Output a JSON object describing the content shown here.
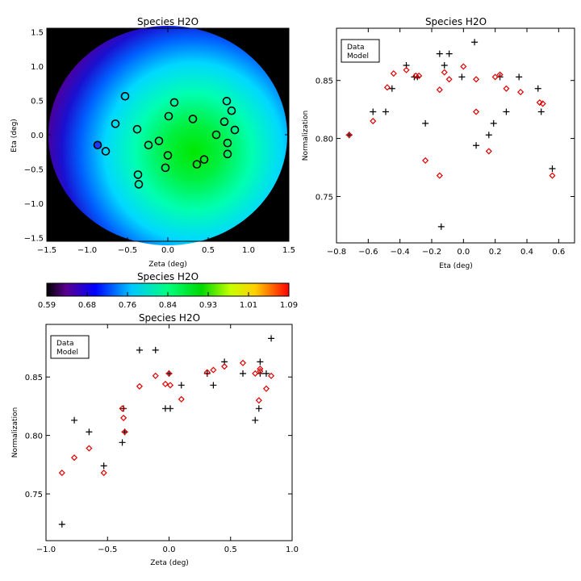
{
  "colors": {
    "data": "#000000",
    "model": "#e00000",
    "map_low": "#3a0060",
    "map_high": "#ff0000",
    "background_mask": "#000000"
  },
  "chart_data": [
    {
      "id": "map",
      "type": "heatmap",
      "title": "Species H2O",
      "xlabel": "Zeta (deg)",
      "ylabel": "Eta (deg)",
      "xlim": [
        -1.5,
        1.5
      ],
      "ylim": [
        -1.55,
        1.55
      ],
      "xticks": [
        "-1.5",
        "-1.0",
        "-0.5",
        "0.0",
        "0.5",
        "1.0",
        "1.5"
      ],
      "yticks": [
        "-1.5",
        "-1.0",
        "-0.5",
        "0.0",
        "0.5",
        "1.0",
        "1.5"
      ],
      "field_center": [
        0.25,
        -0.15
      ],
      "points": [
        {
          "x": -0.87,
          "y": -0.15,
          "filled": true
        },
        {
          "x": -0.77,
          "y": -0.24
        },
        {
          "x": -0.65,
          "y": 0.16
        },
        {
          "x": -0.53,
          "y": 0.56
        },
        {
          "x": -0.38,
          "y": 0.08
        },
        {
          "x": -0.37,
          "y": -0.58
        },
        {
          "x": -0.36,
          "y": -0.72
        },
        {
          "x": -0.24,
          "y": -0.15
        },
        {
          "x": -0.11,
          "y": -0.09
        },
        {
          "x": -0.03,
          "y": -0.48
        },
        {
          "x": 0.0,
          "y": -0.3
        },
        {
          "x": 0.01,
          "y": 0.27
        },
        {
          "x": 0.08,
          "y": 0.47
        },
        {
          "x": 0.31,
          "y": 0.23
        },
        {
          "x": 0.36,
          "y": -0.43
        },
        {
          "x": 0.45,
          "y": -0.36
        },
        {
          "x": 0.6,
          "y": 0.0
        },
        {
          "x": 0.7,
          "y": 0.19
        },
        {
          "x": 0.73,
          "y": 0.49
        },
        {
          "x": 0.74,
          "y": -0.12
        },
        {
          "x": 0.74,
          "y": -0.28
        },
        {
          "x": 0.79,
          "y": 0.35
        },
        {
          "x": 0.83,
          "y": 0.07
        }
      ]
    },
    {
      "id": "colorbar",
      "type": "colorbar",
      "title": "Species H2O",
      "range": [
        0.59,
        1.09
      ],
      "tick_labels": [
        "0.59",
        "0.68",
        "0.76",
        "0.84",
        "0.93",
        "1.01",
        "1.09"
      ]
    },
    {
      "id": "eta_plot",
      "type": "scatter",
      "title": "Species H2O",
      "xlabel": "Eta (deg)",
      "ylabel": "Normalization",
      "xlim": [
        -0.8,
        0.7
      ],
      "ylim": [
        0.71,
        0.895
      ],
      "xticks": [
        -0.8,
        -0.6,
        -0.4,
        -0.2,
        0.0,
        0.2,
        0.4,
        0.6
      ],
      "xtick_labels": [
        "−0.8",
        "−0.6",
        "−0.4",
        "−0.2",
        "0.0",
        "0.2",
        "0.4",
        "0.6"
      ],
      "yticks": [
        0.75,
        0.8,
        0.85
      ],
      "ytick_labels": [
        "0.75",
        "0.80",
        "0.85"
      ],
      "legend": [
        "Data",
        "Model"
      ],
      "legend_position": "top-left",
      "series": [
        {
          "name": "Data",
          "marker": "plus",
          "points": [
            [
              -0.72,
              0.803
            ],
            [
              -0.57,
              0.823
            ],
            [
              -0.49,
              0.823
            ],
            [
              -0.45,
              0.843
            ],
            [
              -0.36,
              0.863
            ],
            [
              -0.31,
              0.853
            ],
            [
              -0.29,
              0.853
            ],
            [
              -0.24,
              0.813
            ],
            [
              -0.15,
              0.873
            ],
            [
              -0.14,
              0.724
            ],
            [
              -0.12,
              0.863
            ],
            [
              -0.09,
              0.873
            ],
            [
              -0.01,
              0.853
            ],
            [
              0.07,
              0.883
            ],
            [
              0.08,
              0.794
            ],
            [
              0.16,
              0.803
            ],
            [
              0.19,
              0.813
            ],
            [
              0.23,
              0.853
            ],
            [
              0.27,
              0.823
            ],
            [
              0.35,
              0.853
            ],
            [
              0.47,
              0.843
            ],
            [
              0.49,
              0.823
            ],
            [
              0.56,
              0.774
            ]
          ]
        },
        {
          "name": "Model",
          "marker": "diamond",
          "points": [
            [
              -0.72,
              0.803
            ],
            [
              -0.57,
              0.815
            ],
            [
              -0.48,
              0.844
            ],
            [
              -0.44,
              0.856
            ],
            [
              -0.36,
              0.859
            ],
            [
              -0.3,
              0.854
            ],
            [
              -0.28,
              0.854
            ],
            [
              -0.24,
              0.781
            ],
            [
              -0.15,
              0.842
            ],
            [
              -0.15,
              0.768
            ],
            [
              -0.12,
              0.857
            ],
            [
              -0.09,
              0.851
            ],
            [
              0.0,
              0.862
            ],
            [
              0.08,
              0.823
            ],
            [
              0.08,
              0.851
            ],
            [
              0.16,
              0.789
            ],
            [
              0.2,
              0.853
            ],
            [
              0.23,
              0.855
            ],
            [
              0.27,
              0.843
            ],
            [
              0.36,
              0.84
            ],
            [
              0.48,
              0.831
            ],
            [
              0.5,
              0.83
            ],
            [
              0.56,
              0.768
            ]
          ]
        }
      ]
    },
    {
      "id": "zeta_plot",
      "type": "scatter",
      "title": "Species H2O",
      "xlabel": "Zeta (deg)",
      "ylabel": "Normalization",
      "xlim": [
        -1.0,
        1.0
      ],
      "ylim": [
        0.71,
        0.895
      ],
      "xticks": [
        -1.0,
        -0.5,
        0.0,
        0.5,
        1.0
      ],
      "xtick_labels": [
        "−1.0",
        "−0.5",
        "0.0",
        "0.5",
        "1.0"
      ],
      "yticks": [
        0.75,
        0.8,
        0.85
      ],
      "ytick_labels": [
        "0.75",
        "0.80",
        "0.85"
      ],
      "legend": [
        "Data",
        "Model"
      ],
      "legend_position": "top-left",
      "series": [
        {
          "name": "Data",
          "marker": "plus",
          "points": [
            [
              -0.87,
              0.724
            ],
            [
              -0.77,
              0.813
            ],
            [
              -0.65,
              0.803
            ],
            [
              -0.53,
              0.774
            ],
            [
              -0.38,
              0.794
            ],
            [
              -0.37,
              0.823
            ],
            [
              -0.36,
              0.803
            ],
            [
              -0.24,
              0.873
            ],
            [
              -0.11,
              0.873
            ],
            [
              -0.03,
              0.823
            ],
            [
              0.0,
              0.853
            ],
            [
              0.01,
              0.823
            ],
            [
              0.1,
              0.843
            ],
            [
              0.31,
              0.853
            ],
            [
              0.36,
              0.843
            ],
            [
              0.45,
              0.863
            ],
            [
              0.6,
              0.853
            ],
            [
              0.7,
              0.813
            ],
            [
              0.73,
              0.823
            ],
            [
              0.74,
              0.853
            ],
            [
              0.74,
              0.863
            ],
            [
              0.79,
              0.853
            ],
            [
              0.83,
              0.883
            ]
          ]
        },
        {
          "name": "Model",
          "marker": "diamond",
          "points": [
            [
              -0.87,
              0.768
            ],
            [
              -0.77,
              0.781
            ],
            [
              -0.65,
              0.789
            ],
            [
              -0.53,
              0.768
            ],
            [
              -0.38,
              0.823
            ],
            [
              -0.37,
              0.815
            ],
            [
              -0.36,
              0.803
            ],
            [
              -0.24,
              0.842
            ],
            [
              -0.11,
              0.851
            ],
            [
              -0.03,
              0.844
            ],
            [
              0.0,
              0.853
            ],
            [
              0.01,
              0.843
            ],
            [
              0.1,
              0.831
            ],
            [
              0.31,
              0.854
            ],
            [
              0.36,
              0.856
            ],
            [
              0.45,
              0.859
            ],
            [
              0.6,
              0.862
            ],
            [
              0.7,
              0.853
            ],
            [
              0.73,
              0.83
            ],
            [
              0.74,
              0.857
            ],
            [
              0.74,
              0.855
            ],
            [
              0.79,
              0.84
            ],
            [
              0.83,
              0.851
            ]
          ]
        }
      ]
    }
  ]
}
